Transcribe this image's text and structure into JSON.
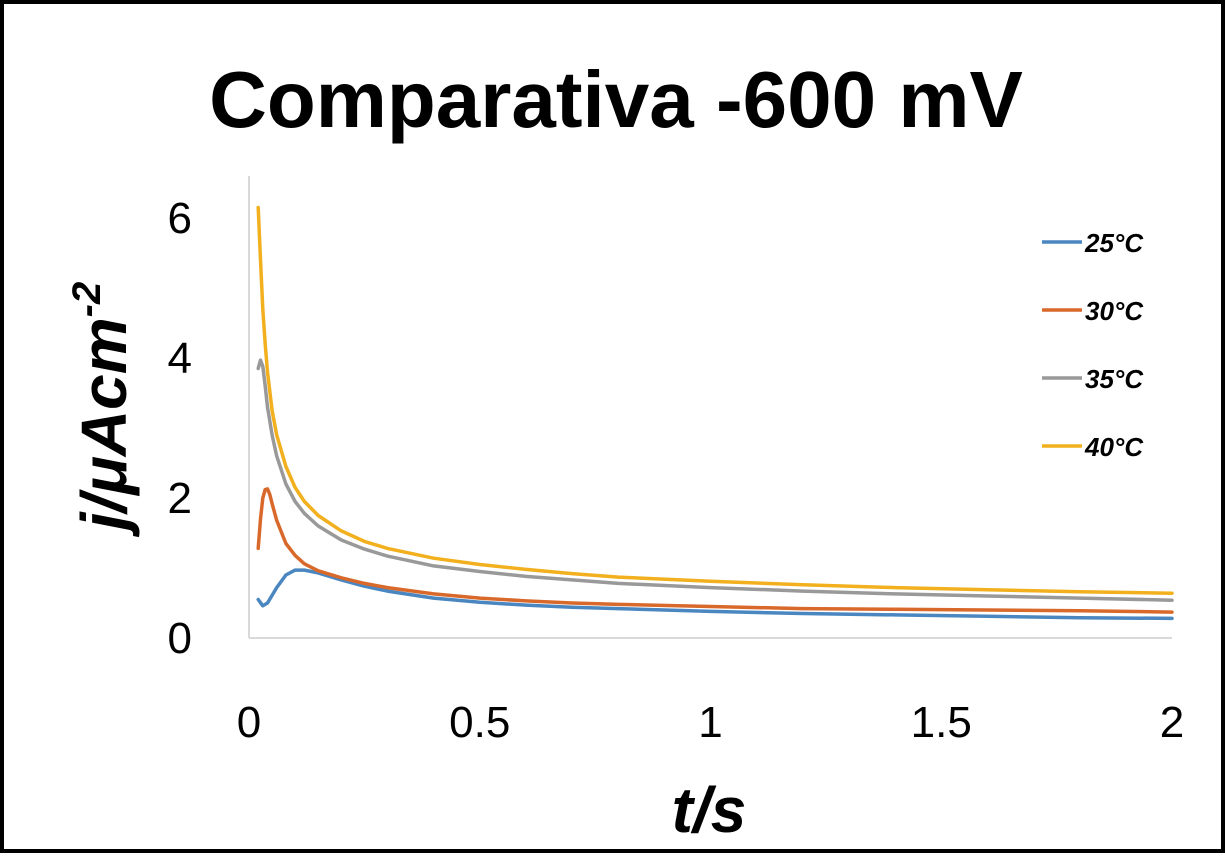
{
  "chart_data": {
    "type": "line",
    "title": "Comparativa -600 mV",
    "xlabel": "t/s",
    "ylabel": {
      "main": "j/μAcm",
      "superscript": "-2"
    },
    "xlim": [
      0,
      2
    ],
    "ylim": [
      0,
      6.8
    ],
    "xticks": [
      0,
      0.5,
      1,
      1.5,
      2
    ],
    "xtick_labels": [
      "0",
      "0.5",
      "1",
      "1.5",
      "2"
    ],
    "yticks": [
      0,
      2,
      4,
      6
    ],
    "ytick_labels": [
      "0",
      "2",
      "4",
      "6"
    ],
    "grid": false,
    "legend_position": "top-right",
    "series": [
      {
        "name": "25°C",
        "color": "#4a86c0",
        "x": [
          0.02,
          0.03,
          0.04,
          0.06,
          0.08,
          0.1,
          0.12,
          0.15,
          0.2,
          0.25,
          0.3,
          0.4,
          0.5,
          0.6,
          0.7,
          0.8,
          1.0,
          1.2,
          1.4,
          1.6,
          1.8,
          2.0
        ],
        "y": [
          0.55,
          0.46,
          0.5,
          0.72,
          0.9,
          0.97,
          0.97,
          0.93,
          0.83,
          0.74,
          0.67,
          0.57,
          0.51,
          0.47,
          0.44,
          0.42,
          0.38,
          0.35,
          0.33,
          0.31,
          0.29,
          0.28
        ]
      },
      {
        "name": "30°C",
        "color": "#d9692b",
        "x": [
          0.02,
          0.025,
          0.03,
          0.035,
          0.04,
          0.045,
          0.05,
          0.06,
          0.08,
          0.1,
          0.12,
          0.15,
          0.2,
          0.25,
          0.3,
          0.4,
          0.5,
          0.6,
          0.7,
          0.8,
          1.0,
          1.2,
          1.4,
          1.6,
          1.8,
          2.0
        ],
        "y": [
          1.28,
          1.7,
          2.0,
          2.12,
          2.13,
          2.05,
          1.92,
          1.68,
          1.35,
          1.18,
          1.06,
          0.96,
          0.86,
          0.78,
          0.72,
          0.63,
          0.57,
          0.53,
          0.5,
          0.48,
          0.45,
          0.42,
          0.41,
          0.4,
          0.39,
          0.37
        ]
      },
      {
        "name": "35°C",
        "color": "#999999",
        "x": [
          0.02,
          0.025,
          0.03,
          0.035,
          0.04,
          0.05,
          0.06,
          0.08,
          0.1,
          0.12,
          0.15,
          0.2,
          0.25,
          0.3,
          0.4,
          0.5,
          0.6,
          0.7,
          0.8,
          1.0,
          1.2,
          1.4,
          1.6,
          1.8,
          2.0
        ],
        "y": [
          3.85,
          3.97,
          3.88,
          3.6,
          3.3,
          2.9,
          2.6,
          2.2,
          1.95,
          1.78,
          1.6,
          1.4,
          1.27,
          1.17,
          1.03,
          0.95,
          0.88,
          0.83,
          0.78,
          0.72,
          0.67,
          0.63,
          0.6,
          0.57,
          0.54
        ]
      },
      {
        "name": "40°C",
        "color": "#f2b01e",
        "x": [
          0.02,
          0.025,
          0.03,
          0.035,
          0.04,
          0.05,
          0.06,
          0.08,
          0.1,
          0.12,
          0.15,
          0.2,
          0.25,
          0.3,
          0.4,
          0.5,
          0.6,
          0.7,
          0.8,
          1.0,
          1.2,
          1.4,
          1.6,
          1.8,
          2.0
        ],
        "y": [
          6.15,
          5.4,
          4.7,
          4.2,
          3.8,
          3.25,
          2.9,
          2.45,
          2.15,
          1.95,
          1.75,
          1.53,
          1.38,
          1.28,
          1.14,
          1.05,
          0.98,
          0.92,
          0.87,
          0.81,
          0.76,
          0.72,
          0.69,
          0.66,
          0.64
        ]
      }
    ]
  }
}
